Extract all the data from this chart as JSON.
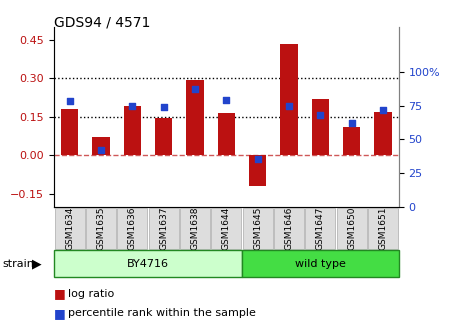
{
  "title": "GDS94 / 4571",
  "categories": [
    "GSM1634",
    "GSM1635",
    "GSM1636",
    "GSM1637",
    "GSM1638",
    "GSM1644",
    "GSM1645",
    "GSM1646",
    "GSM1647",
    "GSM1650",
    "GSM1651"
  ],
  "log_ratio": [
    0.18,
    0.07,
    0.19,
    0.145,
    0.295,
    0.165,
    -0.12,
    0.435,
    0.22,
    0.11,
    0.17
  ],
  "percentile_rank": [
    78,
    42,
    75,
    74,
    87,
    79,
    35,
    75,
    68,
    62,
    72
  ],
  "bar_color": "#bb1111",
  "dot_color": "#2244cc",
  "left_ylim": [
    -0.2,
    0.5
  ],
  "right_ylim": [
    0,
    133.33
  ],
  "left_yticks": [
    -0.15,
    0.0,
    0.15,
    0.3,
    0.45
  ],
  "right_yticks": [
    0,
    25,
    50,
    75,
    100
  ],
  "right_yticklabels": [
    "0",
    "25",
    "50",
    "75",
    "100%"
  ],
  "hline_75": 0.3,
  "hline_50": 0.15,
  "hline_zero": 0.0,
  "strain_groups": [
    {
      "label": "BY4716",
      "start": 0,
      "end": 6,
      "color": "#ccffcc"
    },
    {
      "label": "wild type",
      "start": 6,
      "end": 11,
      "color": "#44dd44"
    }
  ],
  "strain_label": "strain",
  "plot_bg_color": "#ffffff",
  "legend_items": [
    "log ratio",
    "percentile rank within the sample"
  ],
  "figsize": [
    4.69,
    3.36
  ],
  "dpi": 100
}
